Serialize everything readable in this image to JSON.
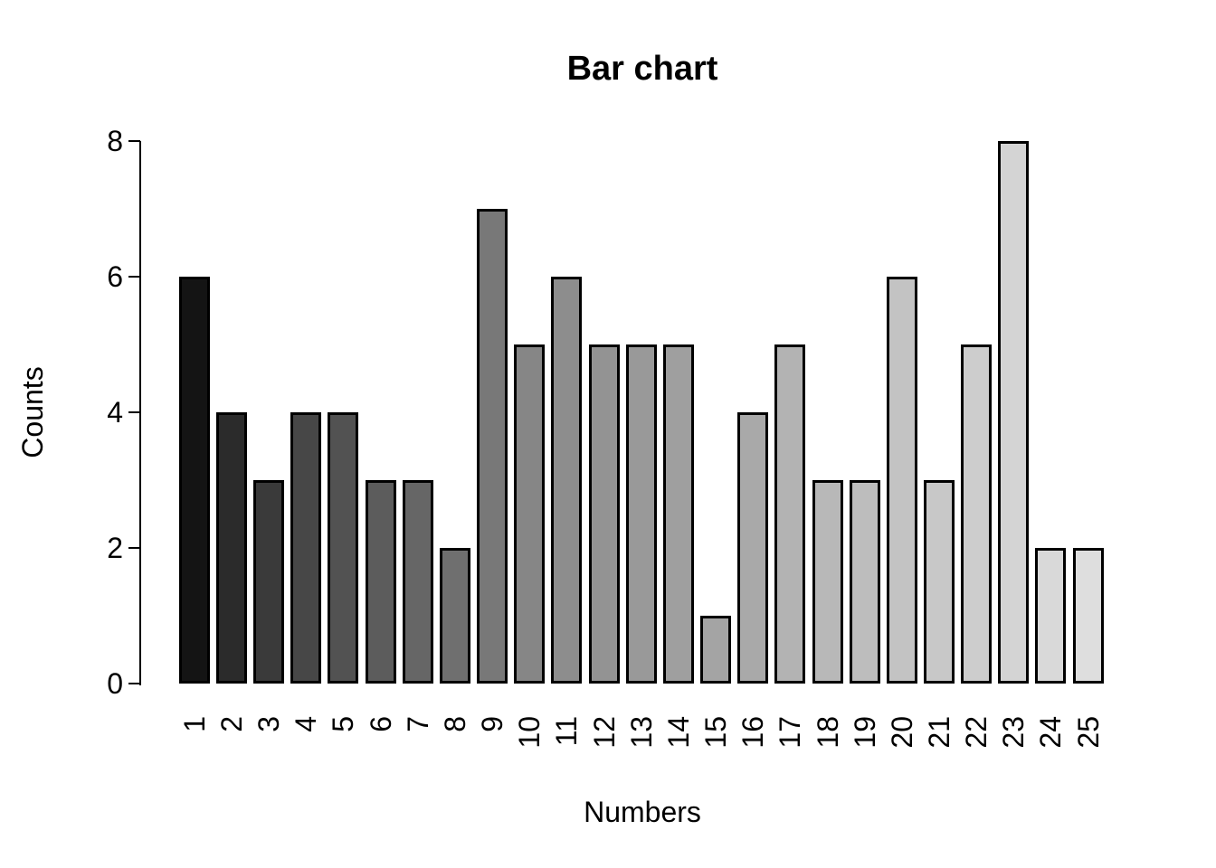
{
  "chart_data": {
    "type": "bar",
    "title": "Bar chart",
    "xlabel": "Numbers",
    "ylabel": "Counts",
    "categories": [
      "1",
      "2",
      "3",
      "4",
      "5",
      "6",
      "7",
      "8",
      "9",
      "10",
      "11",
      "12",
      "13",
      "14",
      "15",
      "16",
      "17",
      "18",
      "19",
      "20",
      "21",
      "22",
      "23",
      "24",
      "25"
    ],
    "values": [
      6,
      4,
      3,
      4,
      4,
      3,
      3,
      2,
      7,
      5,
      6,
      5,
      5,
      5,
      1,
      4,
      5,
      3,
      3,
      6,
      3,
      5,
      8,
      2,
      2
    ],
    "ylim": [
      0,
      8
    ],
    "yticks": [
      0,
      2,
      4,
      6,
      8
    ],
    "grid": false,
    "legend_position": "none",
    "background_color": "#ffffff",
    "text_color": "#000000",
    "bar_border_color": "#000000",
    "bar_colors": [
      "#141414",
      "#2b2b2b",
      "#3a3a3a",
      "#474747",
      "#525252",
      "#5c5c5c",
      "#666666",
      "#6f6f6f",
      "#787878",
      "#868686",
      "#8d8d8d",
      "#939393",
      "#999999",
      "#9f9f9f",
      "#a4a4a4",
      "#a9a9a9",
      "#b3b3b3",
      "#b8b8b8",
      "#bdbdbd",
      "#c3c3c3",
      "#c8c8c8",
      "#cdcdcd",
      "#d4d4d4",
      "#d9d9d9",
      "#dedede"
    ]
  }
}
